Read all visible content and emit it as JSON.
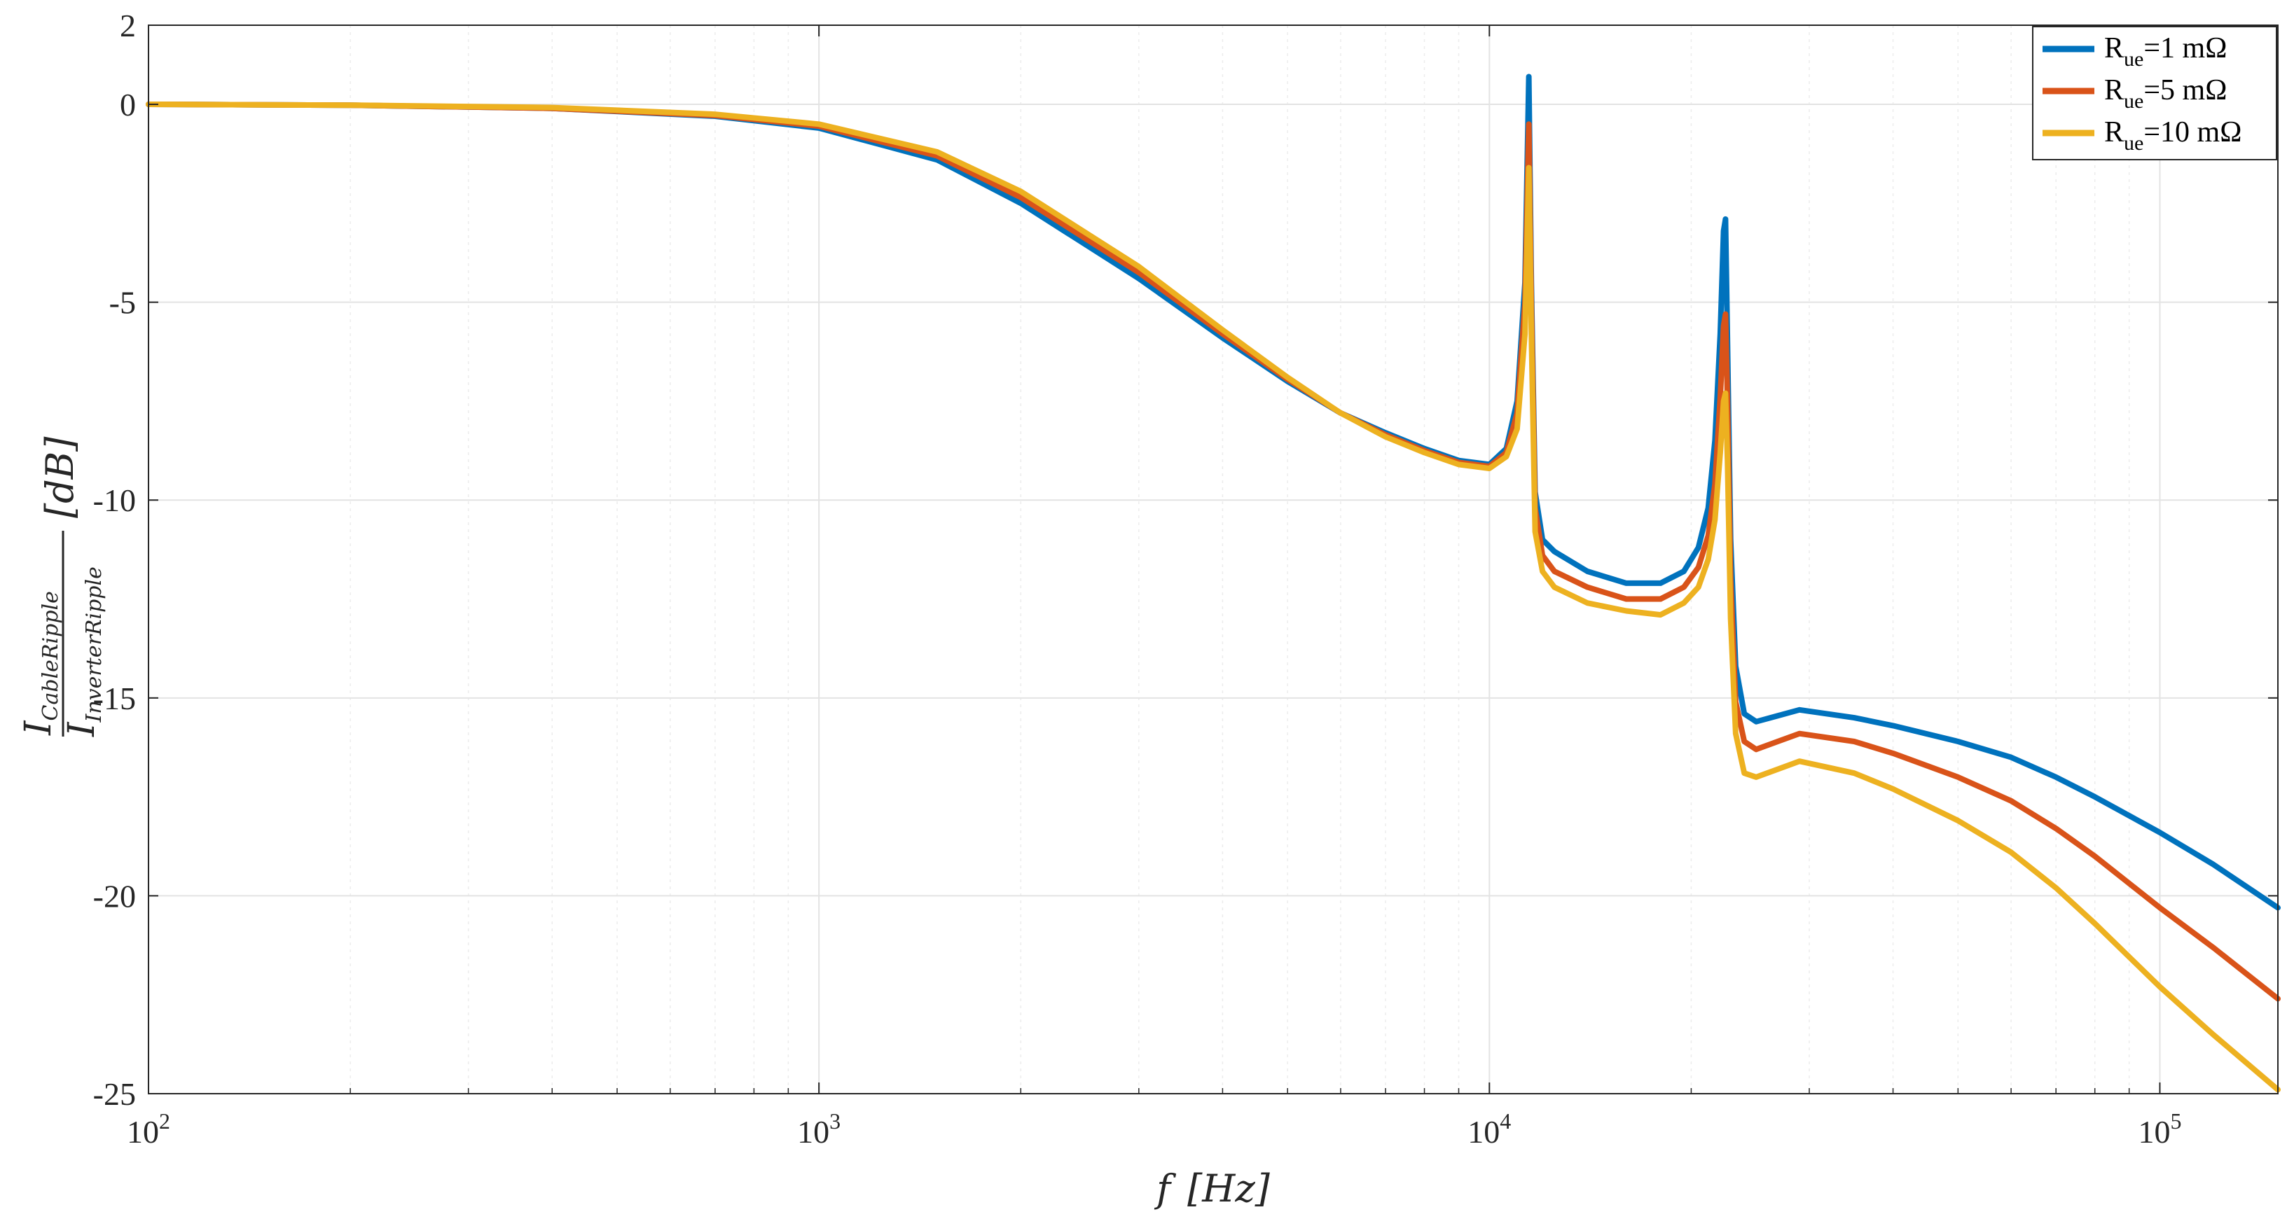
{
  "chart_data": {
    "type": "line",
    "x_scale": "log",
    "xlim": [
      100,
      150000
    ],
    "ylim": [
      -25,
      2
    ],
    "grid": true,
    "xlabel": {
      "var": "f",
      "unit": "[Hz]"
    },
    "ylabel": {
      "numerator": "I",
      "numerator_sub": "CableRipple",
      "denominator": "I",
      "denominator_sub": "InverterRipple",
      "unit": "[dB]"
    },
    "x_ticks": [
      {
        "base": "10",
        "exp": "2",
        "value": 100
      },
      {
        "base": "10",
        "exp": "3",
        "value": 1000
      },
      {
        "base": "10",
        "exp": "4",
        "value": 10000
      },
      {
        "base": "10",
        "exp": "5",
        "value": 100000
      }
    ],
    "y_ticks": [
      "2",
      "0",
      "-5",
      "-10",
      "-15",
      "-20",
      "-25"
    ],
    "legend_position": "top-right",
    "series": [
      {
        "name": "Rue=1 mΩ",
        "legend": {
          "main": "R",
          "sub": "ue",
          "rest": "=1 mΩ"
        },
        "color": "#0072BD",
        "x": [
          100,
          200,
          400,
          700,
          1000,
          1500,
          2000,
          3000,
          4000,
          5000,
          6000,
          7000,
          8000,
          9000,
          10000,
          10600,
          11000,
          11300,
          11450,
          11550,
          11700,
          12000,
          12500,
          14000,
          16000,
          18000,
          19500,
          20500,
          21200,
          21700,
          22100,
          22350,
          22500,
          22650,
          22900,
          23300,
          24000,
          25000,
          29000,
          35000,
          40000,
          50000,
          60000,
          70000,
          80000,
          100000,
          120000,
          150000
        ],
        "y": [
          0,
          -0.02,
          -0.1,
          -0.3,
          -0.6,
          -1.4,
          -2.5,
          -4.4,
          -5.9,
          -7.0,
          -7.8,
          -8.3,
          -8.7,
          -9.0,
          -9.1,
          -8.7,
          -7.5,
          -4.5,
          0.7,
          -4.5,
          -9.8,
          -11.0,
          -11.3,
          -11.8,
          -12.1,
          -12.1,
          -11.8,
          -11.2,
          -10.2,
          -8.5,
          -5.8,
          -3.2,
          -2.9,
          -6.0,
          -11.0,
          -14.2,
          -15.4,
          -15.6,
          -15.3,
          -15.5,
          -15.7,
          -16.1,
          -16.5,
          -17.0,
          -17.5,
          -18.4,
          -19.2,
          -20.3
        ]
      },
      {
        "name": "Rue=5 mΩ",
        "legend": {
          "main": "R",
          "sub": "ue",
          "rest": "=5 mΩ"
        },
        "color": "#D95319",
        "x": [
          100,
          200,
          400,
          700,
          1000,
          1500,
          2000,
          3000,
          4000,
          5000,
          6000,
          7000,
          8000,
          9000,
          10000,
          10600,
          11000,
          11300,
          11450,
          11550,
          11700,
          12000,
          12500,
          14000,
          16000,
          18000,
          19500,
          20500,
          21200,
          21700,
          22100,
          22350,
          22500,
          22650,
          22900,
          23300,
          24000,
          25000,
          29000,
          35000,
          40000,
          50000,
          60000,
          70000,
          80000,
          100000,
          120000,
          150000
        ],
        "y": [
          0,
          -0.02,
          -0.1,
          -0.28,
          -0.55,
          -1.3,
          -2.35,
          -4.25,
          -5.8,
          -6.95,
          -7.8,
          -8.35,
          -8.75,
          -9.05,
          -9.15,
          -8.8,
          -7.8,
          -5.0,
          -0.5,
          -5.0,
          -10.2,
          -11.4,
          -11.8,
          -12.2,
          -12.5,
          -12.5,
          -12.2,
          -11.7,
          -10.9,
          -9.6,
          -7.4,
          -5.6,
          -5.3,
          -7.5,
          -12.0,
          -15.1,
          -16.1,
          -16.3,
          -15.9,
          -16.1,
          -16.4,
          -17.0,
          -17.6,
          -18.3,
          -19.0,
          -20.3,
          -21.3,
          -22.6
        ]
      },
      {
        "name": "Rue=10 mΩ",
        "legend": {
          "main": "R",
          "sub": "ue",
          "rest": "=10 mΩ"
        },
        "color": "#EDB120",
        "x": [
          100,
          200,
          400,
          700,
          1000,
          1500,
          2000,
          3000,
          4000,
          5000,
          6000,
          7000,
          8000,
          9000,
          10000,
          10600,
          11000,
          11300,
          11450,
          11550,
          11700,
          12000,
          12500,
          14000,
          16000,
          18000,
          19500,
          20500,
          21200,
          21700,
          22100,
          22350,
          22500,
          22650,
          22900,
          23300,
          24000,
          25000,
          29000,
          35000,
          40000,
          50000,
          60000,
          70000,
          80000,
          100000,
          120000,
          150000
        ],
        "y": [
          0,
          -0.02,
          -0.08,
          -0.25,
          -0.5,
          -1.2,
          -2.2,
          -4.1,
          -5.7,
          -6.9,
          -7.8,
          -8.4,
          -8.8,
          -9.1,
          -9.2,
          -8.9,
          -8.2,
          -5.8,
          -1.6,
          -5.8,
          -10.8,
          -11.8,
          -12.2,
          -12.6,
          -12.8,
          -12.9,
          -12.6,
          -12.2,
          -11.5,
          -10.5,
          -8.8,
          -7.5,
          -7.3,
          -9.0,
          -13.0,
          -15.9,
          -16.9,
          -17.0,
          -16.6,
          -16.9,
          -17.3,
          -18.1,
          -18.9,
          -19.8,
          -20.7,
          -22.3,
          -23.5,
          -24.9
        ]
      }
    ]
  }
}
